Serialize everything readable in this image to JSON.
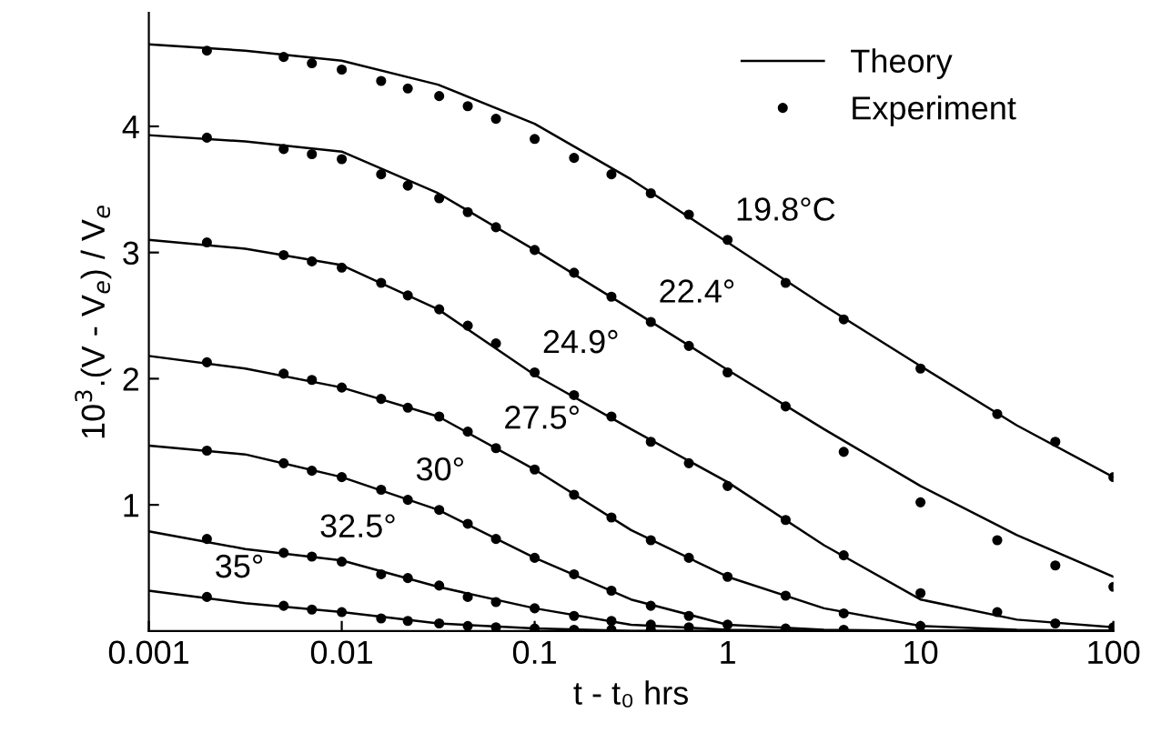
{
  "chart_data": {
    "type": "line",
    "xlabel": "t - t₀ hrs",
    "ylabel": "10$^{3}$.(V - V$_{e}$) / V$_{e}$",
    "log": "x",
    "xlim": [
      0.001,
      100
    ],
    "xticks": [
      0.001,
      0.01,
      0.1,
      1,
      10,
      100
    ],
    "ylim": [
      0,
      4.9
    ],
    "yticks": [
      1,
      2,
      3,
      4
    ],
    "grid": false,
    "legend": "top right",
    "series": [
      {
        "name": "Theory",
        "color": "#000000",
        "line_style": "solid",
        "x": [
          0.001,
          0.00316,
          0.01,
          0.0316,
          0.1,
          0.316,
          1,
          3.16,
          10,
          31.6,
          100
        ],
        "values": [
          4.65,
          4.6,
          4.52,
          4.33,
          4.02,
          3.58,
          3.08,
          2.58,
          2.1,
          1.63,
          1.22
        ]
      },
      {
        "color": "#000000",
        "line_style": "solid",
        "x": [
          0.001,
          0.00316,
          0.01,
          0.0316,
          0.1,
          0.316,
          1,
          3.16,
          10,
          31.6,
          100
        ],
        "values": [
          3.93,
          3.88,
          3.8,
          3.47,
          3.02,
          2.55,
          2.07,
          1.6,
          1.15,
          0.76,
          0.43
        ]
      },
      {
        "color": "#000000",
        "line_style": "solid",
        "x": [
          0.001,
          0.00316,
          0.01,
          0.0316,
          0.1,
          0.316,
          1,
          3.16,
          10,
          31.6,
          100
        ],
        "values": [
          3.1,
          3.03,
          2.9,
          2.55,
          2.03,
          1.6,
          1.18,
          0.68,
          0.25,
          0.09,
          0.03
        ]
      },
      {
        "color": "#000000",
        "line_style": "solid",
        "x": [
          0.001,
          0.00316,
          0.01,
          0.0316,
          0.1,
          0.316,
          1,
          3.16,
          10,
          31.6,
          100
        ],
        "values": [
          2.18,
          2.08,
          1.93,
          1.7,
          1.28,
          0.8,
          0.43,
          0.18,
          0.04,
          0.01,
          0
        ]
      },
      {
        "color": "#000000",
        "line_style": "solid",
        "x": [
          0.001,
          0.00316,
          0.01,
          0.0316,
          0.1,
          0.316,
          1,
          3.16,
          10,
          31.6,
          100
        ],
        "values": [
          1.47,
          1.4,
          1.22,
          0.96,
          0.58,
          0.25,
          0.05,
          0.01,
          0,
          0,
          0
        ]
      },
      {
        "color": "#000000",
        "line_style": "solid",
        "x": [
          0.001,
          0.00316,
          0.01,
          0.0316,
          0.1,
          0.316,
          1,
          3.16,
          10,
          31.6,
          100
        ],
        "values": [
          0.79,
          0.65,
          0.56,
          0.35,
          0.18,
          0.05,
          0.01,
          0,
          0,
          0,
          0
        ]
      },
      {
        "color": "#000000",
        "line_style": "solid",
        "x": [
          0.001,
          0.00316,
          0.01,
          0.0316,
          0.1,
          0.316,
          1,
          3.16,
          10,
          31.6,
          100
        ],
        "values": [
          0.32,
          0.22,
          0.15,
          0.06,
          0.02,
          0,
          0,
          0,
          0,
          0,
          0
        ]
      },
      {
        "name": "Experiment",
        "type": "scatter",
        "color": "#000000",
        "marker": "circle",
        "x": [
          0.002,
          0.005,
          0.007,
          0.01,
          0.016,
          0.022,
          0.032,
          0.045,
          0.063,
          0.1,
          0.16,
          0.25,
          0.4,
          0.63,
          1,
          2,
          4,
          10,
          25,
          50,
          100
        ],
        "values": [
          4.6,
          4.55,
          4.5,
          4.45,
          4.36,
          4.3,
          4.24,
          4.16,
          4.06,
          3.9,
          3.75,
          3.62,
          3.47,
          3.3,
          3.1,
          2.76,
          2.47,
          2.08,
          1.72,
          1.5,
          1.22
        ]
      },
      {
        "type": "scatter",
        "color": "#000000",
        "marker": "circle",
        "x": [
          0.002,
          0.005,
          0.007,
          0.01,
          0.016,
          0.022,
          0.032,
          0.045,
          0.063,
          0.1,
          0.16,
          0.25,
          0.4,
          0.63,
          1,
          2,
          4,
          10,
          25,
          50,
          100
        ],
        "values": [
          3.91,
          3.82,
          3.78,
          3.74,
          3.62,
          3.53,
          3.43,
          3.32,
          3.2,
          3.02,
          2.84,
          2.65,
          2.45,
          2.26,
          2.05,
          1.78,
          1.42,
          1.02,
          0.72,
          0.52,
          0.35
        ]
      },
      {
        "type": "scatter",
        "color": "#000000",
        "marker": "circle",
        "x": [
          0.002,
          0.005,
          0.007,
          0.01,
          0.016,
          0.022,
          0.032,
          0.045,
          0.063,
          0.1,
          0.16,
          0.25,
          0.4,
          0.63,
          1,
          2,
          4,
          10,
          25,
          50,
          100
        ],
        "values": [
          3.08,
          2.98,
          2.93,
          2.88,
          2.76,
          2.66,
          2.55,
          2.42,
          2.28,
          2.05,
          1.87,
          1.7,
          1.5,
          1.33,
          1.15,
          0.88,
          0.6,
          0.3,
          0.15,
          0.06,
          0.03
        ]
      },
      {
        "type": "scatter",
        "color": "#000000",
        "marker": "circle",
        "x": [
          0.002,
          0.005,
          0.007,
          0.01,
          0.016,
          0.022,
          0.032,
          0.045,
          0.063,
          0.1,
          0.16,
          0.25,
          0.4,
          0.63,
          1,
          2,
          4,
          10
        ],
        "values": [
          2.13,
          2.04,
          1.99,
          1.93,
          1.84,
          1.77,
          1.7,
          1.58,
          1.45,
          1.28,
          1.08,
          0.9,
          0.72,
          0.58,
          0.43,
          0.28,
          0.14,
          0.04
        ]
      },
      {
        "type": "scatter",
        "color": "#000000",
        "marker": "circle",
        "x": [
          0.002,
          0.005,
          0.007,
          0.01,
          0.016,
          0.022,
          0.032,
          0.045,
          0.063,
          0.1,
          0.16,
          0.25,
          0.4,
          0.63,
          1,
          2,
          4
        ],
        "values": [
          1.43,
          1.33,
          1.27,
          1.22,
          1.12,
          1.04,
          0.96,
          0.85,
          0.73,
          0.58,
          0.45,
          0.32,
          0.2,
          0.12,
          0.05,
          0.02,
          0.01
        ]
      },
      {
        "type": "scatter",
        "color": "#000000",
        "marker": "circle",
        "x": [
          0.002,
          0.005,
          0.007,
          0.01,
          0.016,
          0.022,
          0.032,
          0.045,
          0.063,
          0.1,
          0.16,
          0.25,
          0.4,
          0.63
        ],
        "values": [
          0.73,
          0.62,
          0.59,
          0.55,
          0.45,
          0.42,
          0.36,
          0.27,
          0.23,
          0.18,
          0.12,
          0.08,
          0.05,
          0.03
        ]
      },
      {
        "type": "scatter",
        "color": "#000000",
        "marker": "circle",
        "x": [
          0.002,
          0.005,
          0.007,
          0.01,
          0.016,
          0.022,
          0.032,
          0.045,
          0.063,
          0.1,
          0.16,
          0.25,
          0.4
        ],
        "values": [
          0.27,
          0.2,
          0.17,
          0.15,
          0.1,
          0.08,
          0.06,
          0.04,
          0.03,
          0.02,
          0.01,
          0.01,
          0.01
        ]
      }
    ],
    "annotations": [
      {
        "text": "19.8°C",
        "x": 1,
        "y": 3.1
      },
      {
        "text": "22.4°",
        "x": 0.4,
        "y": 2.45
      },
      {
        "text": "24.9°",
        "x": 0.1,
        "y": 2.05
      },
      {
        "text": "27.5°",
        "x": 0.063,
        "y": 1.45
      },
      {
        "text": "30°",
        "x": 0.022,
        "y": 1.04
      },
      {
        "text": "32.5°",
        "x": 0.007,
        "y": 0.59
      },
      {
        "text": "35°",
        "x": 0.002,
        "y": 0.27
      }
    ]
  }
}
